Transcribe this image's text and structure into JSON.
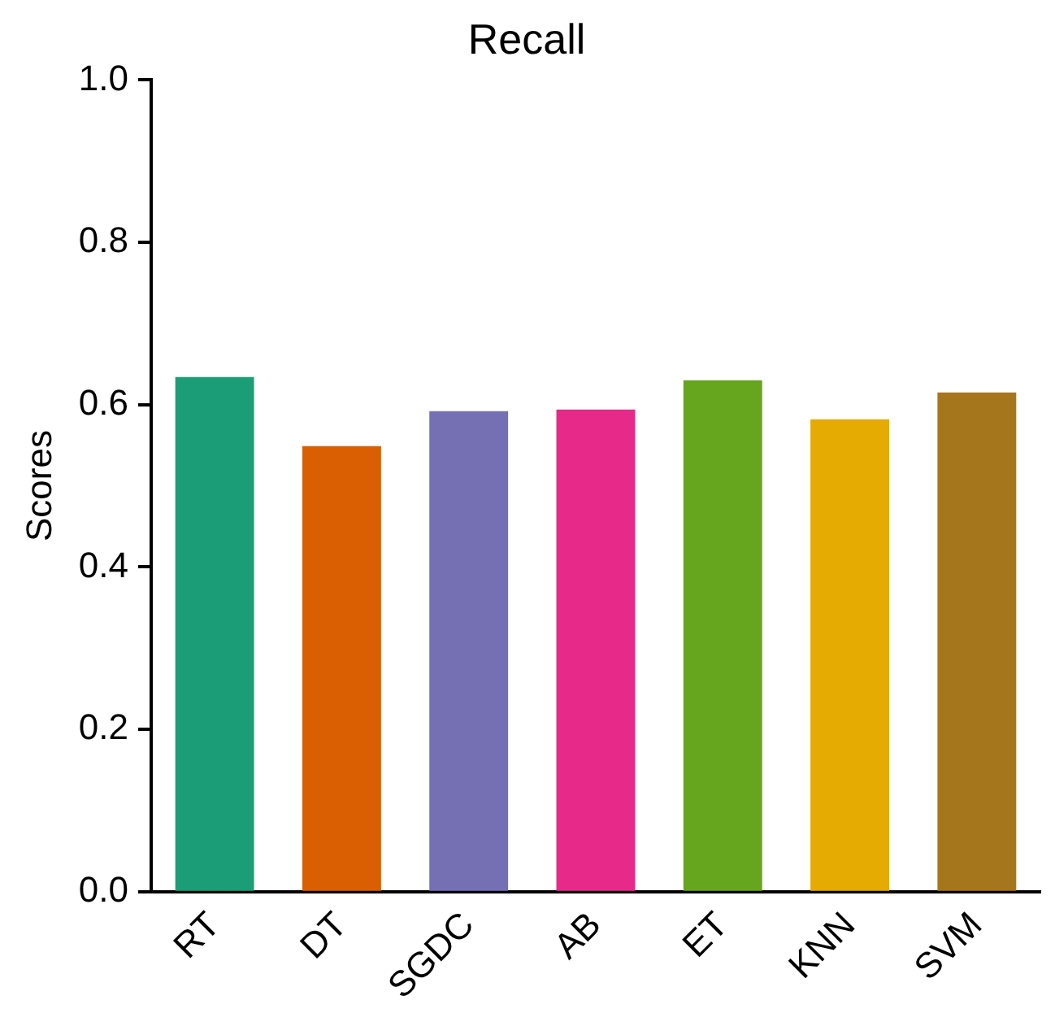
{
  "chart_data": {
    "type": "bar",
    "title": "Recall",
    "ylabel": "Scores",
    "categories": [
      "RT",
      "DT",
      "SGDC",
      "AB",
      "ET",
      "KNN",
      "SVM"
    ],
    "values": [
      0.634,
      0.549,
      0.592,
      0.594,
      0.63,
      0.582,
      0.615
    ],
    "colors": [
      "#1b9e77",
      "#d95f02",
      "#7570b3",
      "#e7298a",
      "#66a61e",
      "#e6ab02",
      "#a6761d"
    ],
    "ylim": [
      0,
      1
    ],
    "yticks": [
      {
        "value": 0,
        "label": "0.0"
      },
      0.2,
      0.4,
      0.6,
      0.8,
      {
        "value": 1,
        "label": "1.0"
      }
    ],
    "grid": false,
    "legend": false
  }
}
